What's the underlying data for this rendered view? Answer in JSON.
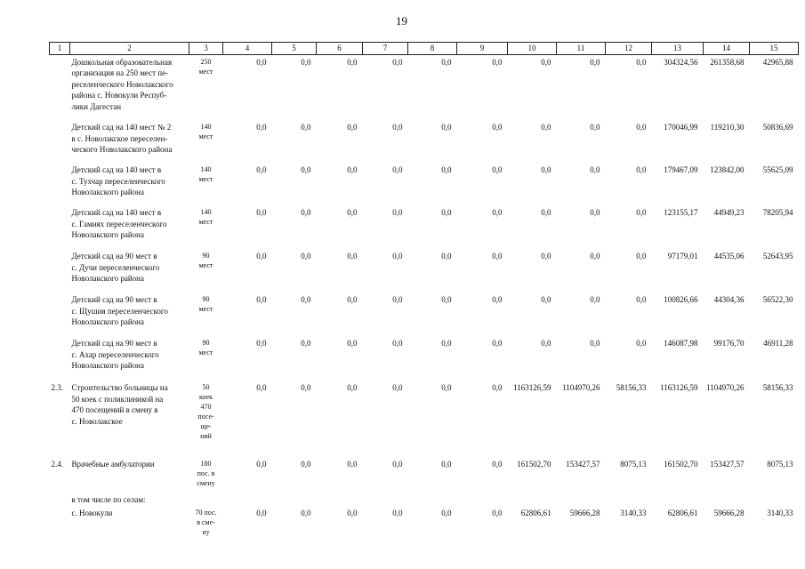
{
  "page_number": "19",
  "table": {
    "header": [
      "1",
      "2",
      "3",
      "4",
      "5",
      "6",
      "7",
      "8",
      "9",
      "10",
      "11",
      "12",
      "13",
      "14",
      "15"
    ],
    "rows": [
      [
        null,
        "Дошкольная образовательная\nорганизация на 250 мест пе-\nреселенческого Новолакского\nрайона с. Новокули Респуб-\nлики Дагестан",
        "250\nмест",
        "0,0",
        "0,0",
        "0,0",
        "0,0",
        "0,0",
        "0,0",
        "0,0",
        "0,0",
        "0,0",
        "304324,56",
        "261358,68",
        "42965,88"
      ],
      [
        null,
        "Детский сад на 140 мест № 2\nв с. Новолакское переселен-\nческого Новолакского района",
        "140\nмест",
        "0,0",
        "0,0",
        "0,0",
        "0,0",
        "0,0",
        "0,0",
        "0,0",
        "0,0",
        "0,0",
        "170046,99",
        "119210,30",
        "50836,69"
      ],
      [
        null,
        "Детский сад на 140 мест в\nс. Тухчар переселенческого\nНоволакского района",
        "140\nмест",
        "0,0",
        "0,0",
        "0,0",
        "0,0",
        "0,0",
        "0,0",
        "0,0",
        "0,0",
        "0,0",
        "179467,09",
        "123842,00",
        "55625,09"
      ],
      [
        null,
        "Детский сад на 140 мест в\nс. Гамиях переселенческого\nНоволакского района",
        "140\nмест",
        "0,0",
        "0,0",
        "0,0",
        "0,0",
        "0,0",
        "0,0",
        "0,0",
        "0,0",
        "0,0",
        "123155,17",
        "44949,23",
        "78205,94"
      ],
      [
        null,
        "Детский сад на 90 мест в\nс. Дучи переселенческого\nНоволакского района",
        "90\nмест",
        "0,0",
        "0,0",
        "0,0",
        "0,0",
        "0,0",
        "0,0",
        "0,0",
        "0,0",
        "0,0",
        "97179,01",
        "44535,06",
        "52643,95"
      ],
      [
        null,
        "Детский сад на 90 мест в\nс. Щушия переселенческого\nНоволакского района",
        "90\nмест",
        "0,0",
        "0,0",
        "0,0",
        "0,0",
        "0,0",
        "0,0",
        "0,0",
        "0,0",
        "0,0",
        "100826,66",
        "44304,36",
        "56522,30"
      ],
      [
        null,
        "Детский сад на 90 мест в\nс. Ахар переселенческого\nНоволакского района",
        "90\nмест",
        "0,0",
        "0,0",
        "0,0",
        "0,0",
        "0,0",
        "0,0",
        "0,0",
        "0,0",
        "0,0",
        "146087,98",
        "99176,70",
        "46911,28"
      ],
      [
        "2.3.",
        "Строительство больницы на\n50 коек с поликлиникой на\n470 посещений в смену в\nс. Новолакское",
        "50\nкоек\n470\nпосе-\nще-\nний",
        "0,0",
        "0,0",
        "0,0",
        "0,0",
        "0,0",
        "0,0",
        "1163126,59",
        "1104970,26",
        "58156,33",
        "1163126,59",
        "1104970,26",
        "58156,33"
      ],
      [
        "2.4.",
        "Врачебные амбулатории",
        "180\nпос. в\nсмену",
        "0,0",
        "0,0",
        "0,0",
        "0,0",
        "0,0",
        "0,0",
        "161502,70",
        "153427,57",
        "8075,13",
        "161502,70",
        "153427,57",
        "8075,13"
      ],
      [
        null,
        "в том числе по селам:",
        null,
        null,
        null,
        null,
        null,
        null,
        null,
        null,
        null,
        null,
        null,
        null,
        null
      ],
      [
        null,
        "с. Новокули",
        "70 пос.\nв сме-\nну",
        "0,0",
        "0,0",
        "0,0",
        "0,0",
        "0,0",
        "0,0",
        "62806,61",
        "59666,28",
        "3140,33",
        "62806,61",
        "59666,28",
        "3140,33"
      ]
    ]
  }
}
